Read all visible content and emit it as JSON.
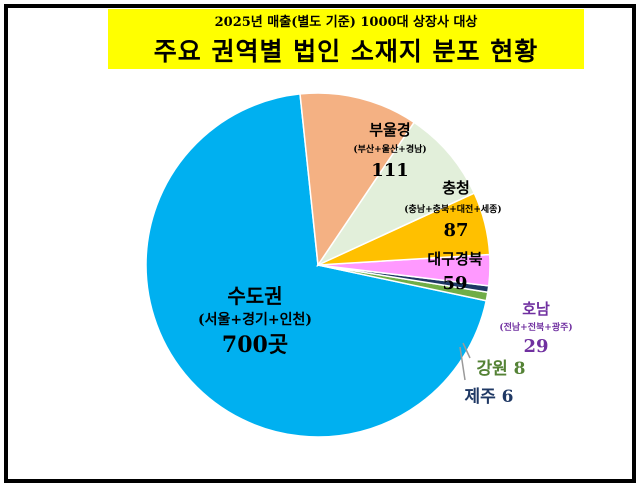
{
  "header": {
    "subtitle": "2025년 매출(별도 기준) 1000대 상장사 대상",
    "title": "주요 권역별 법인 소재지 분포 현황"
  },
  "chart_data": {
    "type": "pie",
    "title": "주요 권역별 법인 소재지 분포 현황",
    "subtitle": "2025년 매출(별도 기준) 1000대 상장사 대상",
    "slices": [
      {
        "name": "수도권",
        "detail": "(서울+경기+인천)",
        "value": 700,
        "value_label": "700곳",
        "color": "#00b0f0"
      },
      {
        "name": "강원",
        "detail": "",
        "value": 8,
        "value_label": "강원 8",
        "color": "#70ad47"
      },
      {
        "name": "제주",
        "detail": "",
        "value": 6,
        "value_label": "제주 6",
        "color": "#1f3864"
      },
      {
        "name": "호남",
        "detail": "(전남+전북+광주)",
        "value": 29,
        "value_label": "29",
        "color": "#ff99ff"
      },
      {
        "name": "대구경북",
        "detail": "",
        "value": 59,
        "value_label": "59",
        "color": "#ffc000"
      },
      {
        "name": "충청",
        "detail": "(충남+충북+대전+세종)",
        "value": 87,
        "value_label": "87",
        "color": "#e2efda"
      },
      {
        "name": "부울경",
        "detail": "(부산+울산+경남)",
        "value": 111,
        "value_label": "111",
        "color": "#f4b183"
      }
    ]
  }
}
